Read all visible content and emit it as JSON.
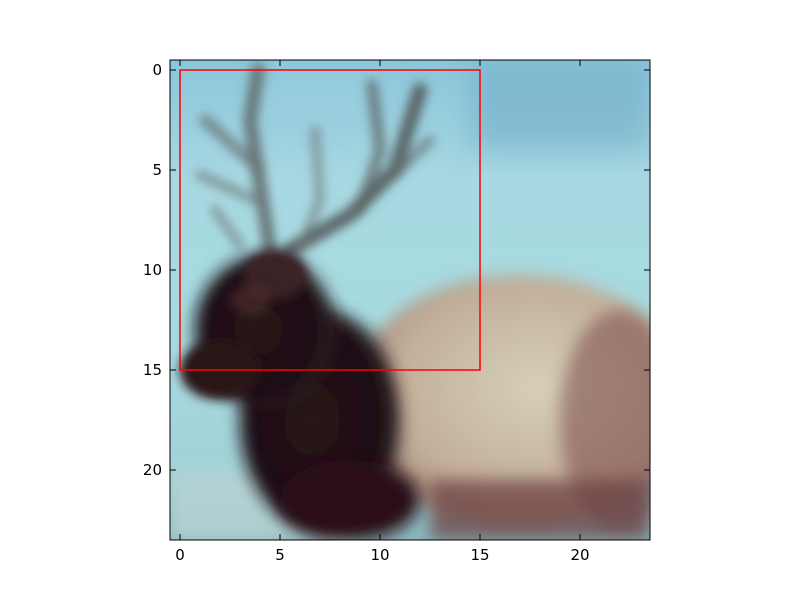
{
  "image_plot": {
    "subject": "blurred photo of an elk with antlers against a snowy background",
    "xlim": [
      -0.5,
      23.5
    ],
    "ylim": [
      23.5,
      -0.5
    ],
    "x_ticks": [
      0,
      5,
      10,
      15,
      20
    ],
    "y_ticks": [
      0,
      5,
      10,
      15,
      20
    ],
    "x_tick_labels": [
      "0",
      "5",
      "10",
      "15",
      "20"
    ],
    "y_tick_labels": [
      "0",
      "5",
      "10",
      "15",
      "20"
    ],
    "highlight_box": {
      "x0": 0,
      "y0": 0,
      "x1": 15,
      "y1": 15,
      "color": "#ff0000"
    },
    "frame_color": "#000000"
  }
}
